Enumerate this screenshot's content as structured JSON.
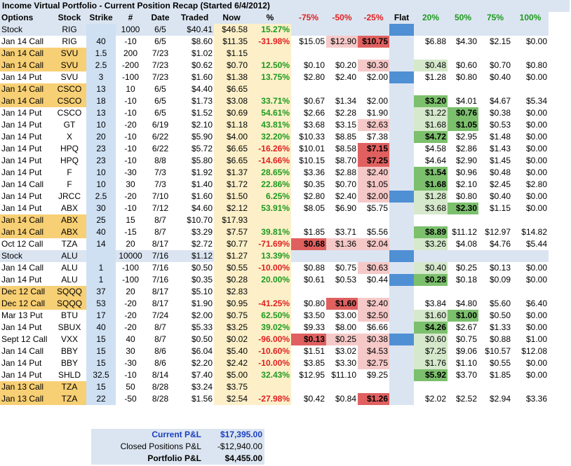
{
  "title": "Income Virtual Portfolio - Current Position Recap (Started 6/4/2012)",
  "headers": [
    "Options",
    "Stock",
    "Strike",
    "#",
    "Date",
    "Traded",
    "Now",
    "%",
    "-75%",
    "-50%",
    "-25%",
    "Flat",
    "20%",
    "50%",
    "75%",
    "100%"
  ],
  "rows": [
    {
      "o": "Stock",
      "s": "RIG",
      "k": "",
      "n": "1000",
      "d": "6/5",
      "t": "$40.41",
      "w": "$46.58",
      "p": "15.27%",
      "m75": "",
      "m50": "",
      "m25": "",
      "g20": "",
      "g50": "",
      "g75": "",
      "g100": ""
    },
    {
      "o": "Jan 14 Call",
      "s": "RIG",
      "k": "40",
      "n": "-10",
      "d": "6/5",
      "t": "$8.60",
      "w": "$11.35",
      "p": "-31.98%",
      "m75": "$15.05",
      "m50": "$12.90",
      "m25": "$10.75",
      "g20": "$6.88",
      "g50": "$4.30",
      "g75": "$2.15",
      "g100": "$0.00"
    },
    {
      "o": "Jan 14 Call",
      "s": "SVU",
      "k": "1.5",
      "n": "200",
      "d": "7/23",
      "t": "$1.02",
      "w": "$1.15",
      "p": "",
      "m75": "",
      "m50": "",
      "m25": "",
      "g20": "",
      "g50": "",
      "g75": "",
      "g100": ""
    },
    {
      "o": "Jan 14 Call",
      "s": "SVU",
      "k": "2.5",
      "n": "-200",
      "d": "7/23",
      "t": "$0.62",
      "w": "$0.70",
      "p": "12.50%",
      "m75": "$0.10",
      "m50": "$0.20",
      "m25": "$0.30",
      "g20": "$0.48",
      "g50": "$0.60",
      "g75": "$0.70",
      "g100": "$0.80"
    },
    {
      "o": "Jan 14 Put",
      "s": "SVU",
      "k": "3",
      "n": "-100",
      "d": "7/23",
      "t": "$1.60",
      "w": "$1.38",
      "p": "13.75%",
      "m75": "$2.80",
      "m50": "$2.40",
      "m25": "$2.00",
      "g20": "$1.28",
      "g50": "$0.80",
      "g75": "$0.40",
      "g100": "$0.00"
    },
    {
      "o": "Jan 14 Call",
      "s": "CSCO",
      "k": "13",
      "n": "10",
      "d": "6/5",
      "t": "$4.40",
      "w": "$6.65",
      "p": "",
      "m75": "",
      "m50": "",
      "m25": "",
      "g20": "",
      "g50": "",
      "g75": "",
      "g100": ""
    },
    {
      "o": "Jan 14 Call",
      "s": "CSCO",
      "k": "18",
      "n": "-10",
      "d": "6/5",
      "t": "$1.73",
      "w": "$3.08",
      "p": "33.71%",
      "m75": "$0.67",
      "m50": "$1.34",
      "m25": "$2.00",
      "g20": "$3.20",
      "g50": "$4.01",
      "g75": "$4.67",
      "g100": "$5.34"
    },
    {
      "o": "Jan 14 Put",
      "s": "CSCO",
      "k": "13",
      "n": "-10",
      "d": "6/5",
      "t": "$1.52",
      "w": "$0.69",
      "p": "54.61%",
      "m75": "$2.66",
      "m50": "$2.28",
      "m25": "$1.90",
      "g20": "$1.22",
      "g50": "$0.76",
      "g75": "$0.38",
      "g100": "$0.00"
    },
    {
      "o": "Jan 14 Put",
      "s": "GT",
      "k": "10",
      "n": "-20",
      "d": "6/19",
      "t": "$2.10",
      "w": "$1.18",
      "p": "43.81%",
      "m75": "$3.68",
      "m50": "$3.15",
      "m25": "$2.63",
      "g20": "$1.68",
      "g50": "$1.05",
      "g75": "$0.53",
      "g100": "$0.00"
    },
    {
      "o": "Jan 14 Put",
      "s": "X",
      "k": "20",
      "n": "-10",
      "d": "6/22",
      "t": "$5.90",
      "w": "$4.00",
      "p": "32.20%",
      "m75": "$10.33",
      "m50": "$8.85",
      "m25": "$7.38",
      "g20": "$4.72",
      "g50": "$2.95",
      "g75": "$1.48",
      "g100": "$0.00"
    },
    {
      "o": "Jan 14 Put",
      "s": "HPQ",
      "k": "23",
      "n": "-10",
      "d": "6/22",
      "t": "$5.72",
      "w": "$6.65",
      "p": "-16.26%",
      "m75": "$10.01",
      "m50": "$8.58",
      "m25": "$7.15",
      "g20": "$4.58",
      "g50": "$2.86",
      "g75": "$1.43",
      "g100": "$0.00"
    },
    {
      "o": "Jan 14 Put",
      "s": "HPQ",
      "k": "23",
      "n": "-10",
      "d": "8/8",
      "t": "$5.80",
      "w": "$6.65",
      "p": "-14.66%",
      "m75": "$10.15",
      "m50": "$8.70",
      "m25": "$7.25",
      "g20": "$4.64",
      "g50": "$2.90",
      "g75": "$1.45",
      "g100": "$0.00"
    },
    {
      "o": "Jan 14 Put",
      "s": "F",
      "k": "10",
      "n": "-30",
      "d": "7/3",
      "t": "$1.92",
      "w": "$1.37",
      "p": "28.65%",
      "m75": "$3.36",
      "m50": "$2.88",
      "m25": "$2.40",
      "g20": "$1.54",
      "g50": "$0.96",
      "g75": "$0.48",
      "g100": "$0.00"
    },
    {
      "o": "Jan 14 Call",
      "s": "F",
      "k": "10",
      "n": "30",
      "d": "7/3",
      "t": "$1.40",
      "w": "$1.72",
      "p": "22.86%",
      "m75": "$0.35",
      "m50": "$0.70",
      "m25": "$1.05",
      "g20": "$1.68",
      "g50": "$2.10",
      "g75": "$2.45",
      "g100": "$2.80"
    },
    {
      "o": "Jan 14 Put",
      "s": "JRCC",
      "k": "2.5",
      "n": "-20",
      "d": "7/10",
      "t": "$1.60",
      "w": "$1.50",
      "p": "6.25%",
      "m75": "$2.80",
      "m50": "$2.40",
      "m25": "$2.00",
      "g20": "$1.28",
      "g50": "$0.80",
      "g75": "$0.40",
      "g100": "$0.00"
    },
    {
      "o": "Jan 14 Put",
      "s": "ABX",
      "k": "30",
      "n": "-10",
      "d": "7/12",
      "t": "$4.60",
      "w": "$2.12",
      "p": "53.91%",
      "m75": "$8.05",
      "m50": "$6.90",
      "m25": "$5.75",
      "g20": "$3.68",
      "g50": "$2.30",
      "g75": "$1.15",
      "g100": "$0.00"
    },
    {
      "o": "Jan 14 Call",
      "s": "ABX",
      "k": "25",
      "n": "15",
      "d": "8/7",
      "t": "$10.70",
      "w": "$17.93",
      "p": "",
      "m75": "",
      "m50": "",
      "m25": "",
      "g20": "",
      "g50": "",
      "g75": "",
      "g100": ""
    },
    {
      "o": "Jan 14 Call",
      "s": "ABX",
      "k": "40",
      "n": "-15",
      "d": "8/7",
      "t": "$3.29",
      "w": "$7.57",
      "p": "39.81%",
      "m75": "$1.85",
      "m50": "$3.71",
      "m25": "$5.56",
      "g20": "$8.89",
      "g50": "$11.12",
      "g75": "$12.97",
      "g100": "$14.82"
    },
    {
      "o": "Oct 12 Call",
      "s": "TZA",
      "k": "14",
      "n": "20",
      "d": "8/17",
      "t": "$2.72",
      "w": "$0.77",
      "p": "-71.69%",
      "m75": "$0.68",
      "m50": "$1.36",
      "m25": "$2.04",
      "g20": "$3.26",
      "g50": "$4.08",
      "g75": "$4.76",
      "g100": "$5.44"
    },
    {
      "o": "Stock",
      "s": "ALU",
      "k": "",
      "n": "10000",
      "d": "7/16",
      "t": "$1.12",
      "w": "$1.27",
      "p": "13.39%",
      "m75": "",
      "m50": "",
      "m25": "",
      "g20": "",
      "g50": "",
      "g75": "",
      "g100": ""
    },
    {
      "o": "Jan 14 Call",
      "s": "ALU",
      "k": "1",
      "n": "-100",
      "d": "7/16",
      "t": "$0.50",
      "w": "$0.55",
      "p": "-10.00%",
      "m75": "$0.88",
      "m50": "$0.75",
      "m25": "$0.63",
      "g20": "$0.40",
      "g50": "$0.25",
      "g75": "$0.13",
      "g100": "$0.00"
    },
    {
      "o": "Jan 14 Put",
      "s": "ALU",
      "k": "1",
      "n": "-100",
      "d": "7/16",
      "t": "$0.35",
      "w": "$0.28",
      "p": "20.00%",
      "m75": "$0.61",
      "m50": "$0.53",
      "m25": "$0.44",
      "g20": "$0.28",
      "g50": "$0.18",
      "g75": "$0.09",
      "g100": "$0.00"
    },
    {
      "o": "Dec 12 Call",
      "s": "SQQQ",
      "k": "37",
      "n": "20",
      "d": "8/17",
      "t": "$5.10",
      "w": "$2.83",
      "p": "",
      "m75": "",
      "m50": "",
      "m25": "",
      "g20": "",
      "g50": "",
      "g75": "",
      "g100": ""
    },
    {
      "o": "Dec 12 Call",
      "s": "SQQQ",
      "k": "53",
      "n": "-20",
      "d": "8/17",
      "t": "$1.90",
      "w": "$0.95",
      "p": "-41.25%",
      "m75": "$0.80",
      "m50": "$1.60",
      "m25": "$2.40",
      "g20": "$3.84",
      "g50": "$4.80",
      "g75": "$5.60",
      "g100": "$6.40"
    },
    {
      "o": "Mar 13 Put",
      "s": "BTU",
      "k": "17",
      "n": "-20",
      "d": "7/24",
      "t": "$2.00",
      "w": "$0.75",
      "p": "62.50%",
      "m75": "$3.50",
      "m50": "$3.00",
      "m25": "$2.50",
      "g20": "$1.60",
      "g50": "$1.00",
      "g75": "$0.50",
      "g100": "$0.00"
    },
    {
      "o": "Jan 14 Put",
      "s": "SBUX",
      "k": "40",
      "n": "-20",
      "d": "8/7",
      "t": "$5.33",
      "w": "$3.25",
      "p": "39.02%",
      "m75": "$9.33",
      "m50": "$8.00",
      "m25": "$6.66",
      "g20": "$4.26",
      "g50": "$2.67",
      "g75": "$1.33",
      "g100": "$0.00"
    },
    {
      "o": "Sept 12 Call",
      "s": "VXX",
      "k": "15",
      "n": "40",
      "d": "8/7",
      "t": "$0.50",
      "w": "$0.02",
      "p": "-96.00%",
      "m75": "$0.13",
      "m50": "$0.25",
      "m25": "$0.38",
      "g20": "$0.60",
      "g50": "$0.75",
      "g75": "$0.88",
      "g100": "$1.00"
    },
    {
      "o": "Jan 14 Call",
      "s": "BBY",
      "k": "15",
      "n": "30",
      "d": "8/6",
      "t": "$6.04",
      "w": "$5.40",
      "p": "-10.60%",
      "m75": "$1.51",
      "m50": "$3.02",
      "m25": "$4.53",
      "g20": "$7.25",
      "g50": "$9.06",
      "g75": "$10.57",
      "g100": "$12.08"
    },
    {
      "o": "Jan 14 Put",
      "s": "BBY",
      "k": "15",
      "n": "-30",
      "d": "8/6",
      "t": "$2.20",
      "w": "$2.42",
      "p": "-10.00%",
      "m75": "$3.85",
      "m50": "$3.30",
      "m25": "$2.75",
      "g20": "$1.76",
      "g50": "$1.10",
      "g75": "$0.55",
      "g100": "$0.00"
    },
    {
      "o": "Jan 14 Put",
      "s": "SHLD",
      "k": "32.5",
      "n": "-10",
      "d": "8/14",
      "t": "$7.40",
      "w": "$5.00",
      "p": "32.43%",
      "m75": "$12.95",
      "m50": "$11.10",
      "m25": "$9.25",
      "g20": "$5.92",
      "g50": "$3.70",
      "g75": "$1.85",
      "g100": "$0.00"
    },
    {
      "o": "Jan 13 Call",
      "s": "TZA",
      "k": "15",
      "n": "50",
      "d": "8/28",
      "t": "$3.24",
      "w": "$3.75",
      "p": "",
      "m75": "",
      "m50": "",
      "m25": "",
      "g20": "",
      "g50": "",
      "g75": "",
      "g100": ""
    },
    {
      "o": "Jan 13 Call",
      "s": "TZA",
      "k": "22",
      "n": "-50",
      "d": "8/28",
      "t": "$1.56",
      "w": "$2.54",
      "p": "-27.98%",
      "m75": "$0.42",
      "m50": "$0.84",
      "m25": "$1.26",
      "g20": "$2.02",
      "g50": "$2.52",
      "g75": "$2.94",
      "g100": "$3.36"
    }
  ],
  "summary": {
    "current_label": "Current P&L",
    "current_value": "$17,395.00",
    "closed_label": "Closed Positions P&L",
    "closed_value": "-$12,940.00",
    "portfolio_label": "Portfolio P&L",
    "portfolio_value": "$4,455.00"
  },
  "colors": {
    "header_bg": "#dbe5f1",
    "highlight": "#f7cf74",
    "negative_text": "#e02020",
    "positive_text": "#1e9a1e",
    "flat_blue": "#4f8fd4",
    "pink": "#f6c9c9",
    "red": "#e06060",
    "light_green": "#d6e9cc",
    "green": "#7cc06d"
  }
}
